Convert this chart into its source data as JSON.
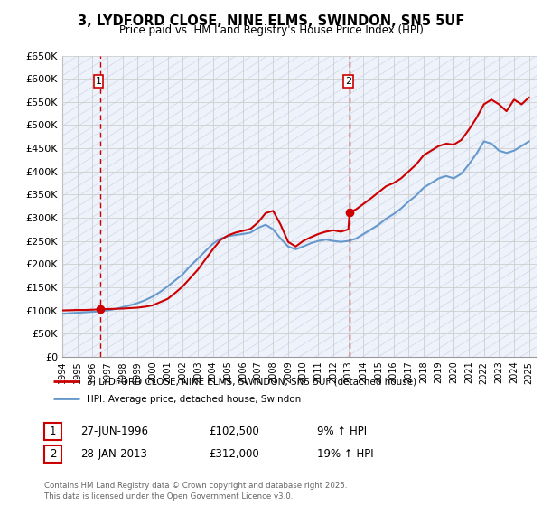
{
  "title": "3, LYDFORD CLOSE, NINE ELMS, SWINDON, SN5 5UF",
  "subtitle": "Price paid vs. HM Land Registry's House Price Index (HPI)",
  "ylim": [
    0,
    650000
  ],
  "yticks": [
    0,
    50000,
    100000,
    150000,
    200000,
    250000,
    300000,
    350000,
    400000,
    450000,
    500000,
    550000,
    600000,
    650000
  ],
  "ytick_labels": [
    "£0",
    "£50K",
    "£100K",
    "£150K",
    "£200K",
    "£250K",
    "£300K",
    "£350K",
    "£400K",
    "£450K",
    "£500K",
    "£550K",
    "£600K",
    "£650K"
  ],
  "xlim_start": 1994.0,
  "xlim_end": 2025.5,
  "xtick_years": [
    1994,
    1995,
    1996,
    1997,
    1998,
    1999,
    2000,
    2001,
    2002,
    2003,
    2004,
    2005,
    2006,
    2007,
    2008,
    2009,
    2010,
    2011,
    2012,
    2013,
    2014,
    2015,
    2016,
    2017,
    2018,
    2019,
    2020,
    2021,
    2022,
    2023,
    2024,
    2025
  ],
  "sale1_date": 1996.49,
  "sale1_price": 102500,
  "sale1_label": "1",
  "sale2_date": 2013.08,
  "sale2_price": 312000,
  "sale2_label": "2",
  "red_line_color": "#cc0000",
  "blue_line_color": "#6699cc",
  "vline_color": "#cc0000",
  "grid_color": "#cccccc",
  "plot_bg_color": "#eef2fb",
  "legend1_label": "3, LYDFORD CLOSE, NINE ELMS, SWINDON, SN5 5UF (detached house)",
  "legend2_label": "HPI: Average price, detached house, Swindon",
  "annotation1_date": "27-JUN-1996",
  "annotation1_price": "£102,500",
  "annotation1_hpi": "9% ↑ HPI",
  "annotation2_date": "28-JAN-2013",
  "annotation2_price": "£312,000",
  "annotation2_hpi": "19% ↑ HPI",
  "footer_text": "Contains HM Land Registry data © Crown copyright and database right 2025.\nThis data is licensed under the Open Government Licence v3.0.",
  "red_x": [
    1994.0,
    1994.5,
    1995.0,
    1995.5,
    1996.0,
    1996.49,
    1997.0,
    1997.5,
    1998.0,
    1998.5,
    1999.0,
    1999.5,
    2000.0,
    2000.5,
    2001.0,
    2001.5,
    2002.0,
    2002.5,
    2003.0,
    2003.5,
    2004.0,
    2004.5,
    2005.0,
    2005.5,
    2006.0,
    2006.5,
    2007.0,
    2007.5,
    2008.0,
    2008.5,
    2009.0,
    2009.5,
    2010.0,
    2010.5,
    2011.0,
    2011.5,
    2012.0,
    2012.5,
    2013.0,
    2013.08,
    2013.5,
    2014.0,
    2014.5,
    2015.0,
    2015.5,
    2016.0,
    2016.5,
    2017.0,
    2017.5,
    2018.0,
    2018.5,
    2019.0,
    2019.5,
    2020.0,
    2020.5,
    2021.0,
    2021.5,
    2022.0,
    2022.5,
    2023.0,
    2023.5,
    2024.0,
    2024.5,
    2025.0
  ],
  "red_y": [
    100000,
    100500,
    101000,
    101000,
    101500,
    102500,
    103000,
    103500,
    104000,
    105000,
    106000,
    108000,
    111000,
    118000,
    125000,
    138000,
    152000,
    170000,
    188000,
    210000,
    232000,
    252000,
    262000,
    268000,
    272000,
    276000,
    290000,
    310000,
    315000,
    285000,
    248000,
    238000,
    250000,
    258000,
    265000,
    270000,
    273000,
    270000,
    275000,
    312000,
    318000,
    330000,
    342000,
    355000,
    368000,
    375000,
    385000,
    400000,
    415000,
    435000,
    445000,
    455000,
    460000,
    458000,
    468000,
    490000,
    515000,
    545000,
    555000,
    545000,
    530000,
    555000,
    545000,
    560000
  ],
  "blue_x": [
    1994.0,
    1994.5,
    1995.0,
    1995.5,
    1996.0,
    1996.5,
    1997.0,
    1997.5,
    1998.0,
    1998.5,
    1999.0,
    1999.5,
    2000.0,
    2000.5,
    2001.0,
    2001.5,
    2002.0,
    2002.5,
    2003.0,
    2003.5,
    2004.0,
    2004.5,
    2005.0,
    2005.5,
    2006.0,
    2006.5,
    2007.0,
    2007.5,
    2008.0,
    2008.5,
    2009.0,
    2009.5,
    2010.0,
    2010.5,
    2011.0,
    2011.5,
    2012.0,
    2012.5,
    2013.0,
    2013.5,
    2014.0,
    2014.5,
    2015.0,
    2015.5,
    2016.0,
    2016.5,
    2017.0,
    2017.5,
    2018.0,
    2018.5,
    2019.0,
    2019.5,
    2020.0,
    2020.5,
    2021.0,
    2021.5,
    2022.0,
    2022.5,
    2023.0,
    2023.5,
    2024.0,
    2024.5,
    2025.0
  ],
  "blue_y": [
    93000,
    94000,
    95000,
    96000,
    97000,
    98000,
    100000,
    103000,
    107000,
    111000,
    116000,
    122000,
    130000,
    140000,
    152000,
    165000,
    178000,
    196000,
    212000,
    228000,
    244000,
    255000,
    260000,
    263000,
    265000,
    268000,
    278000,
    285000,
    275000,
    255000,
    238000,
    232000,
    238000,
    245000,
    250000,
    253000,
    250000,
    248000,
    250000,
    255000,
    265000,
    275000,
    285000,
    298000,
    308000,
    320000,
    335000,
    348000,
    365000,
    375000,
    385000,
    390000,
    385000,
    395000,
    415000,
    438000,
    465000,
    460000,
    445000,
    440000,
    445000,
    455000,
    465000
  ]
}
